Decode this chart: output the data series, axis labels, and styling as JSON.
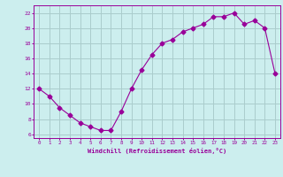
{
  "x": [
    0,
    1,
    2,
    3,
    4,
    5,
    6,
    7,
    8,
    9,
    10,
    11,
    12,
    13,
    14,
    15,
    16,
    17,
    18,
    19,
    20,
    21,
    22,
    23
  ],
  "y": [
    12,
    11,
    9.5,
    8.5,
    7.5,
    7,
    6.5,
    6.5,
    9,
    12,
    14.5,
    16.5,
    18,
    18.5,
    19.5,
    20,
    20.5,
    21.5,
    21.5,
    22,
    20.5,
    21,
    20,
    14
  ],
  "line_color": "#990099",
  "marker": "D",
  "marker_size": 2.5,
  "bg_color": "#cceeee",
  "grid_color": "#aacccc",
  "xlabel": "Windchill (Refroidissement éolien,°C)",
  "xlabel_color": "#990099",
  "tick_color": "#990099",
  "xlim": [
    -0.5,
    23.5
  ],
  "ylim": [
    5.5,
    23
  ],
  "yticks": [
    6,
    8,
    10,
    12,
    14,
    16,
    18,
    20,
    22
  ],
  "xticks": [
    0,
    1,
    2,
    3,
    4,
    5,
    6,
    7,
    8,
    9,
    10,
    11,
    12,
    13,
    14,
    15,
    16,
    17,
    18,
    19,
    20,
    21,
    22,
    23
  ]
}
